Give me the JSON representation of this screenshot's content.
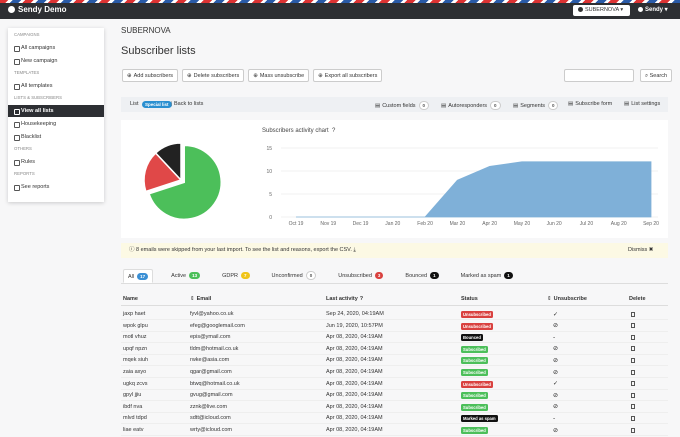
{
  "navbar": {
    "brand": "Sendy Demo",
    "brand_switcher": "SUBERNOVA",
    "user": "Sendy"
  },
  "sidebar": {
    "sections": [
      {
        "heading": "CAMPAIGNS",
        "items": [
          {
            "label": "All campaigns"
          },
          {
            "label": "New campaign"
          }
        ]
      },
      {
        "heading": "TEMPLATES",
        "items": [
          {
            "label": "All templates"
          }
        ]
      },
      {
        "heading": "LISTS & SUBSCRIBERS",
        "items": [
          {
            "label": "View all lists",
            "active": true
          },
          {
            "label": "Housekeeping"
          },
          {
            "label": "Blacklist"
          }
        ]
      },
      {
        "heading": "OTHERS",
        "items": [
          {
            "label": "Rules"
          }
        ]
      },
      {
        "heading": "REPORTS",
        "items": [
          {
            "label": "See reports"
          }
        ]
      }
    ]
  },
  "header": {
    "brand": "SUBERNOVA",
    "title": "Subscriber lists"
  },
  "toolbar": {
    "buttons": [
      "Add subscribers",
      "Delete subscribers",
      "Mass unsubscribe",
      "Export all subscribers"
    ],
    "search_button": "Search"
  },
  "list_bar": {
    "label": "List",
    "list_name": "Special list",
    "back": "Back to lists",
    "links": [
      {
        "label": "Custom fields",
        "count": 0
      },
      {
        "label": "Autoresponders",
        "count": 0
      },
      {
        "label": "Segments",
        "count": 0
      },
      {
        "label": "Subscribe form"
      },
      {
        "label": "List settings"
      }
    ]
  },
  "chart_data": [
    {
      "type": "pie",
      "values": [
        70,
        18,
        12
      ],
      "colors": [
        "#4cbf5a",
        "#e04848",
        "#222222"
      ],
      "explode": [
        true,
        false,
        false
      ]
    },
    {
      "type": "area",
      "title": "Subscribers activity chart",
      "categories": [
        "Oct 19",
        "Nov 19",
        "Dec 19",
        "Jan 20",
        "Feb 20",
        "Mar 20",
        "Apr 20",
        "May 20",
        "Jun 20",
        "Jul 20",
        "Aug 20",
        "Sep 20"
      ],
      "values": [
        0,
        0,
        0,
        0,
        0,
        8,
        11,
        12,
        12,
        12,
        12,
        12
      ],
      "color": "#7fb0d8",
      "ylim": [
        0,
        15
      ],
      "yticks": [
        0,
        5,
        10,
        15
      ],
      "grid": true
    }
  ],
  "alert": {
    "text": "8 emails were skipped from your last import. To see the list and reasons, export the CSV.",
    "dismiss": "Dismiss"
  },
  "tabs": [
    {
      "label": "All",
      "count": 17,
      "color": "#3a8fd4",
      "active": true
    },
    {
      "label": "Active",
      "count": 13,
      "color": "#4cbf5a"
    },
    {
      "label": "GDPR",
      "count": 7,
      "color": "#f0c419"
    },
    {
      "label": "Unconfirmed",
      "count": 0,
      "color": "#ffffff"
    },
    {
      "label": "Unsubscribed",
      "count": 3,
      "color": "#d9413f"
    },
    {
      "label": "Bounced",
      "count": 1,
      "color": "#111111"
    },
    {
      "label": "Marked as spam",
      "count": 1,
      "color": "#111111"
    }
  ],
  "table": {
    "columns": [
      "Name",
      "Email",
      "Last activity",
      "Status",
      "Unsubscribe",
      "Delete"
    ],
    "rows": [
      {
        "name": "jaxp haet",
        "email": "fyvl@yahoo.co.uk",
        "last_activity": "Sep 24, 2020, 04:19AM",
        "status": "Unsubscribed",
        "status_color": "#d9413f",
        "unsubscribe": "✓"
      },
      {
        "name": "wpok glpu",
        "email": "efeg@googlemail.com",
        "last_activity": "Jun 19, 2020, 10:57PM",
        "status": "Unsubscribed",
        "status_color": "#d9413f",
        "unsubscribe": "⊘"
      },
      {
        "name": "motl vhuz",
        "email": "epis@ymail.com",
        "last_activity": "Apr 08, 2020, 04:19AM",
        "status": "Bounced",
        "status_color": "#111111",
        "unsubscribe": "-"
      },
      {
        "name": "upqf npzn",
        "email": "tldm@hotmail.co.uk",
        "last_activity": "Apr 08, 2020, 04:19AM",
        "status": "Subscribed",
        "status_color": "#4cbf5a",
        "unsubscribe": "⊘"
      },
      {
        "name": "mqek siuh",
        "email": "rwke@asia.com",
        "last_activity": "Apr 08, 2020, 04:19AM",
        "status": "Subscribed",
        "status_color": "#4cbf5a",
        "unsubscribe": "⊘"
      },
      {
        "name": "zaia axyo",
        "email": "qgar@gmail.com",
        "last_activity": "Apr 08, 2020, 04:19AM",
        "status": "Subscribed",
        "status_color": "#4cbf5a",
        "unsubscribe": "⊘"
      },
      {
        "name": "ugkq zcvs",
        "email": "btwq@hotmail.co.uk",
        "last_activity": "Apr 08, 2020, 04:19AM",
        "status": "Unsubscribed",
        "status_color": "#d9413f",
        "unsubscribe": "✓"
      },
      {
        "name": "gpyl jjiu",
        "email": "gvug@gmail.com",
        "last_activity": "Apr 08, 2020, 04:19AM",
        "status": "Subscribed",
        "status_color": "#4cbf5a",
        "unsubscribe": "⊘"
      },
      {
        "name": "ibdf nva",
        "email": "zznk@live.com",
        "last_activity": "Apr 08, 2020, 04:19AM",
        "status": "Subscribed",
        "status_color": "#4cbf5a",
        "unsubscribe": "⊘"
      },
      {
        "name": "mlvd tdpd",
        "email": "sdtt@icloud.com",
        "last_activity": "Apr 08, 2020, 04:19AM",
        "status": "Marked as spam",
        "status_color": "#111111",
        "unsubscribe": "-"
      },
      {
        "name": "liae eatv",
        "email": "wrty@icloud.com",
        "last_activity": "Apr 08, 2020, 04:19AM",
        "status": "Subscribed",
        "status_color": "#4cbf5a",
        "unsubscribe": "⊘"
      }
    ]
  }
}
